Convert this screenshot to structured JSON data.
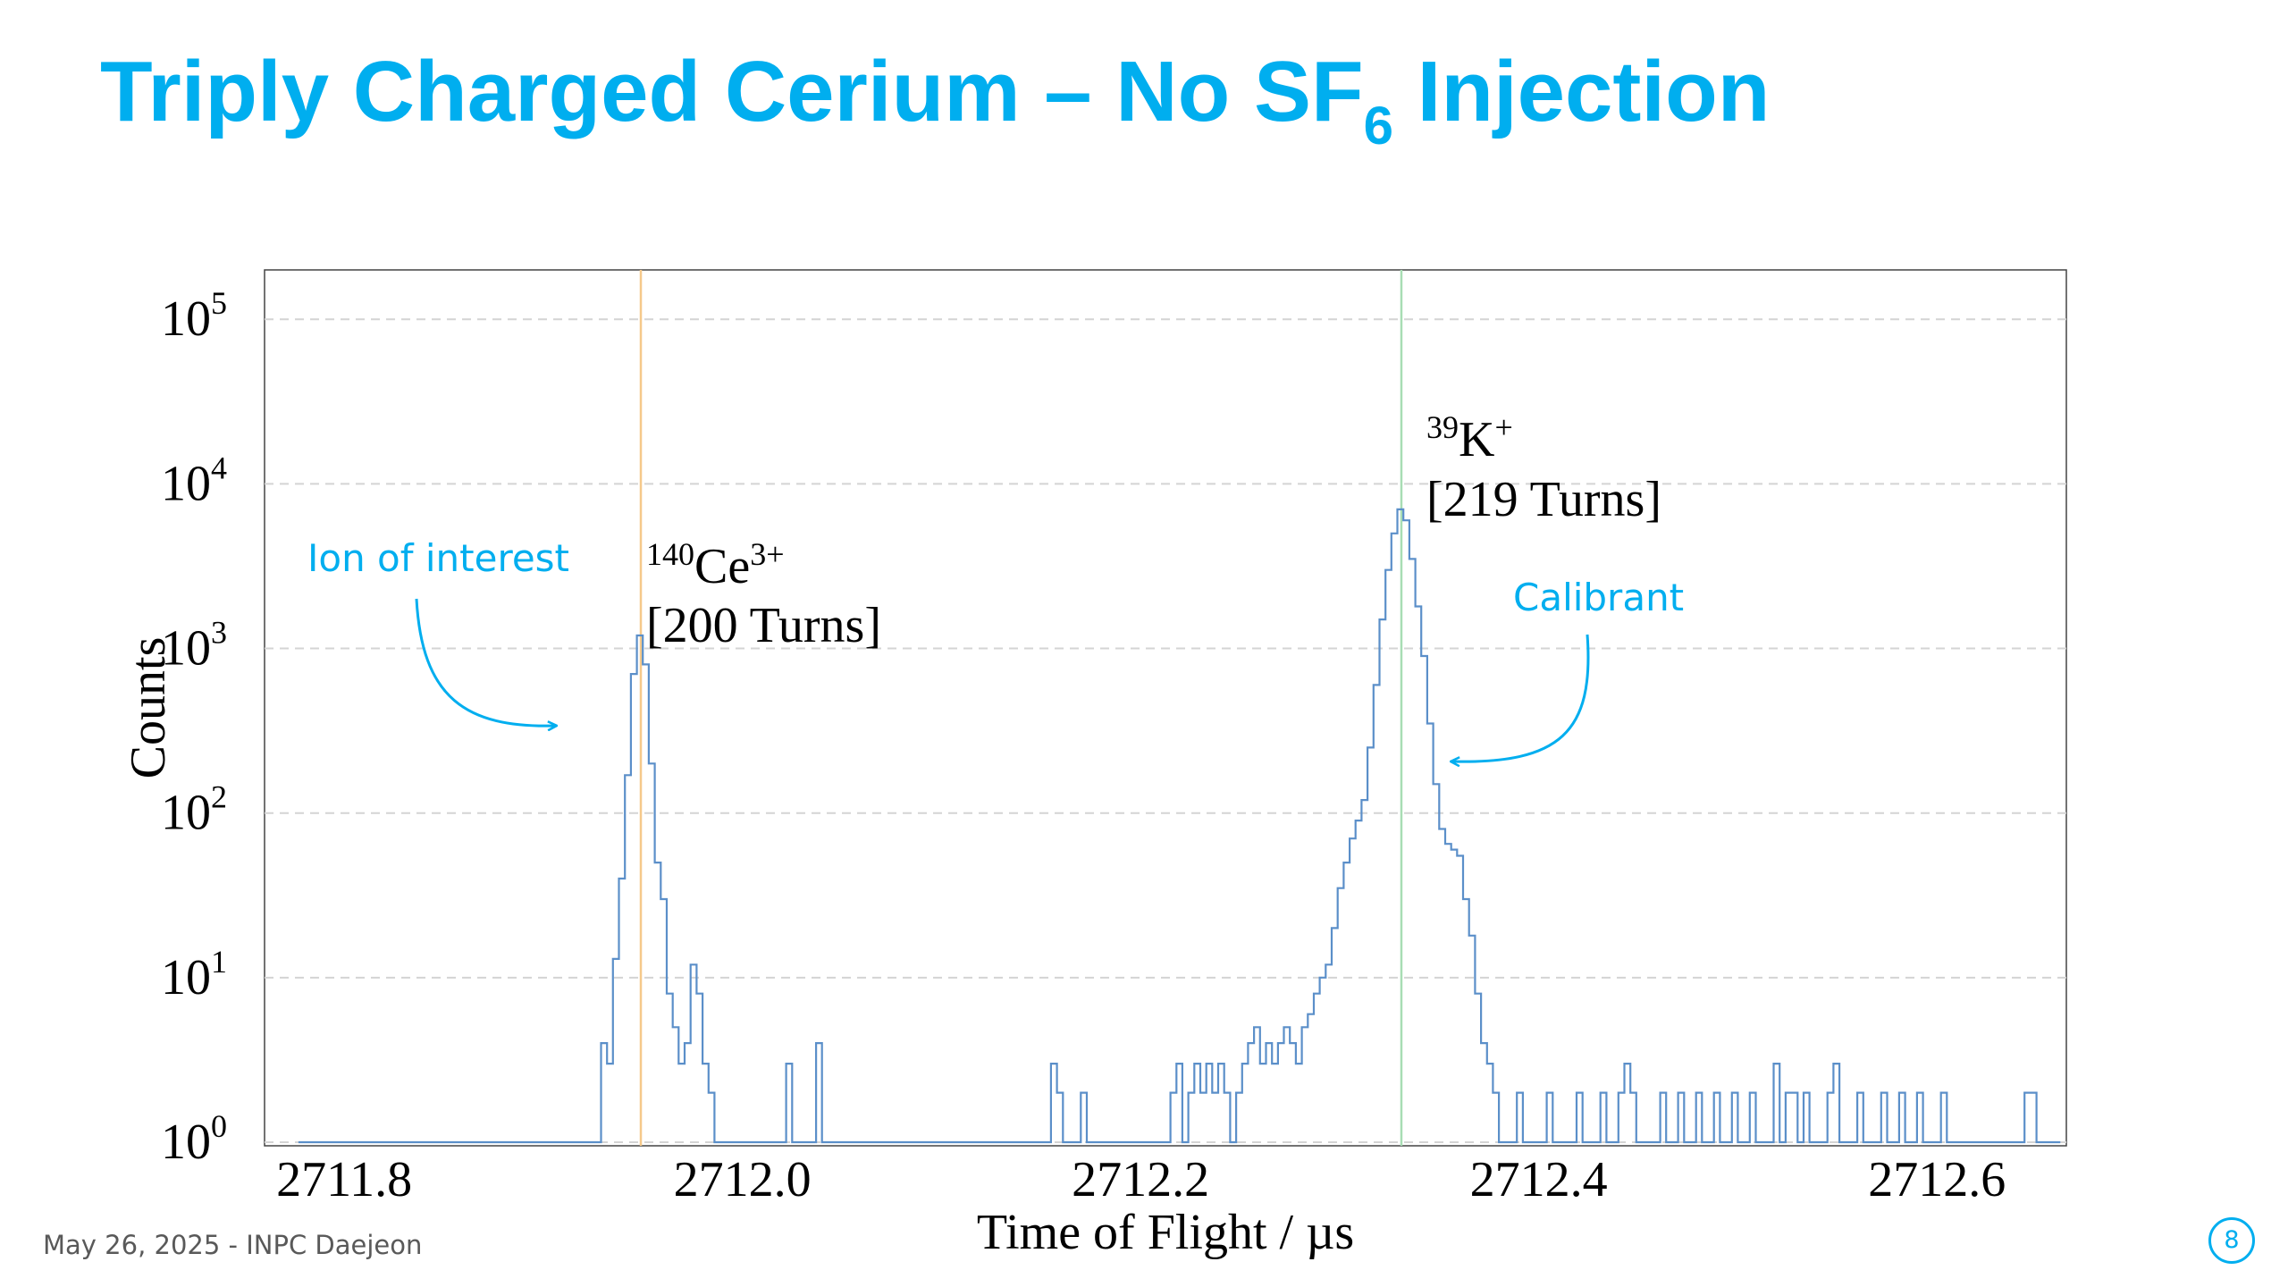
{
  "slide": {
    "title_pre": "Triply Charged Cerium – No SF",
    "title_sub": "6",
    "title_post": " Injection",
    "footer": "May 26, 2025 - INPC Daejeon",
    "page_number": "8",
    "accent_color": "#00AEEF"
  },
  "chart_data": {
    "type": "line",
    "subtype": "step-histogram",
    "xlabel": "Time of Flight / µs",
    "ylabel": "Counts",
    "xlim": [
      2711.76,
      2712.665
    ],
    "ylog": true,
    "ylim_decades": [
      0,
      5.3
    ],
    "x_ticks": [
      "2711.8",
      "2712.0",
      "2712.2",
      "2712.4",
      "2712.6"
    ],
    "y_ticks": [
      {
        "base": "10",
        "exp": "5"
      },
      {
        "base": "10",
        "exp": "4"
      },
      {
        "base": "10",
        "exp": "3"
      },
      {
        "base": "10",
        "exp": "2"
      },
      {
        "base": "10",
        "exp": "1"
      },
      {
        "base": "10",
        "exp": "0"
      }
    ],
    "grid": "horizontal-dashed",
    "line_color": "#5B8FC9",
    "bin_width": 0.003,
    "peaks": [
      {
        "label_sup": "140",
        "label_main": "Ce",
        "label_charge": "3+",
        "turns": "[200 Turns]",
        "x": 2711.949,
        "max_counts": 1200,
        "line_color": "#F5C98A"
      },
      {
        "label_sup": "39",
        "label_main": "K",
        "label_charge": "+",
        "turns": "[219 Turns]",
        "x": 2712.331,
        "max_counts": 7000,
        "line_color": "#A8DDB4"
      }
    ],
    "annotations": [
      {
        "text": "Ion of interest",
        "color": "#00AEEF"
      },
      {
        "text": "Calibrant",
        "color": "#00AEEF"
      }
    ],
    "histogram": [
      [
        2711.777,
        1
      ],
      [
        2711.851,
        1
      ],
      [
        2711.879,
        1
      ],
      [
        2711.897,
        1
      ],
      [
        2711.901,
        1
      ],
      [
        2711.907,
        1
      ],
      [
        2711.912,
        1
      ],
      [
        2711.917,
        1
      ],
      [
        2711.929,
        4
      ],
      [
        2711.932,
        3
      ],
      [
        2711.935,
        13
      ],
      [
        2711.938,
        40
      ],
      [
        2711.941,
        170
      ],
      [
        2711.944,
        700
      ],
      [
        2711.947,
        1200
      ],
      [
        2711.95,
        800
      ],
      [
        2711.953,
        200
      ],
      [
        2711.956,
        50
      ],
      [
        2711.959,
        30
      ],
      [
        2711.962,
        8
      ],
      [
        2711.965,
        5
      ],
      [
        2711.968,
        3
      ],
      [
        2711.971,
        4
      ],
      [
        2711.974,
        12
      ],
      [
        2711.977,
        8
      ],
      [
        2711.98,
        3
      ],
      [
        2711.983,
        2
      ],
      [
        2711.986,
        1
      ],
      [
        2711.989,
        1
      ],
      [
        2711.995,
        1
      ],
      [
        2712.008,
        1
      ],
      [
        2712.016,
        1
      ],
      [
        2712.019,
        1
      ],
      [
        2712.022,
        3
      ],
      [
        2712.031,
        1
      ],
      [
        2712.034,
        1
      ],
      [
        2712.037,
        4
      ],
      [
        2712.04,
        1
      ],
      [
        2712.043,
        1
      ],
      [
        2712.077,
        1
      ],
      [
        2712.091,
        1
      ],
      [
        2712.101,
        1
      ],
      [
        2712.127,
        1
      ],
      [
        2712.131,
        1
      ],
      [
        2712.137,
        1
      ],
      [
        2712.143,
        1
      ],
      [
        2712.146,
        1
      ],
      [
        2712.152,
        1
      ],
      [
        2712.155,
        3
      ],
      [
        2712.158,
        2
      ],
      [
        2712.161,
        1
      ],
      [
        2712.17,
        2
      ],
      [
        2712.188,
        1
      ],
      [
        2712.194,
        1
      ],
      [
        2712.2,
        1
      ],
      [
        2712.206,
        1
      ],
      [
        2712.212,
        1
      ],
      [
        2712.215,
        2
      ],
      [
        2712.218,
        3
      ],
      [
        2712.221,
        1
      ],
      [
        2712.224,
        2
      ],
      [
        2712.227,
        3
      ],
      [
        2712.23,
        2
      ],
      [
        2712.233,
        3
      ],
      [
        2712.236,
        2
      ],
      [
        2712.239,
        3
      ],
      [
        2712.242,
        2
      ],
      [
        2712.245,
        1
      ],
      [
        2712.248,
        2
      ],
      [
        2712.251,
        3
      ],
      [
        2712.254,
        4
      ],
      [
        2712.257,
        5
      ],
      [
        2712.26,
        3
      ],
      [
        2712.263,
        4
      ],
      [
        2712.266,
        3
      ],
      [
        2712.269,
        4
      ],
      [
        2712.272,
        5
      ],
      [
        2712.275,
        4
      ],
      [
        2712.278,
        3
      ],
      [
        2712.281,
        5
      ],
      [
        2712.284,
        6
      ],
      [
        2712.287,
        8
      ],
      [
        2712.29,
        10
      ],
      [
        2712.293,
        12
      ],
      [
        2712.296,
        20
      ],
      [
        2712.299,
        35
      ],
      [
        2712.302,
        50
      ],
      [
        2712.305,
        70
      ],
      [
        2712.308,
        90
      ],
      [
        2712.311,
        120
      ],
      [
        2712.314,
        250
      ],
      [
        2712.317,
        600
      ],
      [
        2712.32,
        1500
      ],
      [
        2712.323,
        3000
      ],
      [
        2712.326,
        5000
      ],
      [
        2712.329,
        7000
      ],
      [
        2712.332,
        6000
      ],
      [
        2712.335,
        3500
      ],
      [
        2712.338,
        1800
      ],
      [
        2712.341,
        900
      ],
      [
        2712.344,
        350
      ],
      [
        2712.347,
        150
      ],
      [
        2712.35,
        80
      ],
      [
        2712.353,
        65
      ],
      [
        2712.356,
        60
      ],
      [
        2712.359,
        55
      ],
      [
        2712.362,
        30
      ],
      [
        2712.365,
        18
      ],
      [
        2712.368,
        8
      ],
      [
        2712.371,
        4
      ],
      [
        2712.374,
        3
      ],
      [
        2712.377,
        2
      ],
      [
        2712.38,
        1
      ],
      [
        2712.383,
        1
      ],
      [
        2712.386,
        1
      ],
      [
        2712.389,
        2
      ],
      [
        2712.392,
        1
      ],
      [
        2712.395,
        1
      ],
      [
        2712.398,
        1
      ],
      [
        2712.401,
        1
      ],
      [
        2712.404,
        2
      ],
      [
        2712.407,
        1
      ],
      [
        2712.41,
        1
      ],
      [
        2712.413,
        1
      ],
      [
        2712.416,
        1
      ],
      [
        2712.419,
        2
      ],
      [
        2712.422,
        1
      ],
      [
        2712.425,
        1
      ],
      [
        2712.428,
        1
      ],
      [
        2712.431,
        2
      ],
      [
        2712.434,
        1
      ],
      [
        2712.437,
        1
      ],
      [
        2712.44,
        2
      ],
      [
        2712.443,
        3
      ],
      [
        2712.446,
        2
      ],
      [
        2712.449,
        1
      ],
      [
        2712.452,
        1
      ],
      [
        2712.455,
        1
      ],
      [
        2712.458,
        1
      ],
      [
        2712.461,
        2
      ],
      [
        2712.464,
        1
      ],
      [
        2712.467,
        1
      ],
      [
        2712.47,
        2
      ],
      [
        2712.473,
        1
      ],
      [
        2712.476,
        1
      ],
      [
        2712.479,
        2
      ],
      [
        2712.482,
        1
      ],
      [
        2712.485,
        1
      ],
      [
        2712.488,
        2
      ],
      [
        2712.491,
        1
      ],
      [
        2712.494,
        1
      ],
      [
        2712.497,
        2
      ],
      [
        2712.5,
        1
      ],
      [
        2712.503,
        1
      ],
      [
        2712.506,
        2
      ],
      [
        2712.509,
        1
      ],
      [
        2712.512,
        1
      ],
      [
        2712.515,
        1
      ],
      [
        2712.518,
        3
      ],
      [
        2712.521,
        1
      ],
      [
        2712.524,
        2
      ],
      [
        2712.527,
        2
      ],
      [
        2712.53,
        1
      ],
      [
        2712.533,
        2
      ],
      [
        2712.536,
        1
      ],
      [
        2712.539,
        1
      ],
      [
        2712.542,
        1
      ],
      [
        2712.545,
        2
      ],
      [
        2712.548,
        3
      ],
      [
        2712.551,
        1
      ],
      [
        2712.554,
        1
      ],
      [
        2712.557,
        1
      ],
      [
        2712.56,
        2
      ],
      [
        2712.563,
        1
      ],
      [
        2712.566,
        1
      ],
      [
        2712.569,
        1
      ],
      [
        2712.572,
        2
      ],
      [
        2712.575,
        1
      ],
      [
        2712.578,
        1
      ],
      [
        2712.581,
        2
      ],
      [
        2712.584,
        1
      ],
      [
        2712.587,
        1
      ],
      [
        2712.59,
        2
      ],
      [
        2712.593,
        1
      ],
      [
        2712.596,
        1
      ],
      [
        2712.599,
        1
      ],
      [
        2712.602,
        2
      ],
      [
        2712.605,
        1
      ],
      [
        2712.608,
        1
      ],
      [
        2712.611,
        1
      ],
      [
        2712.614,
        1
      ],
      [
        2712.617,
        1
      ],
      [
        2712.62,
        1
      ],
      [
        2712.623,
        1
      ],
      [
        2712.626,
        1
      ],
      [
        2712.629,
        1
      ],
      [
        2712.632,
        1
      ],
      [
        2712.635,
        1
      ],
      [
        2712.638,
        1
      ],
      [
        2712.641,
        1
      ],
      [
        2712.644,
        2
      ],
      [
        2712.647,
        2
      ],
      [
        2712.65,
        1
      ],
      [
        2712.653,
        1
      ],
      [
        2712.656,
        1
      ],
      [
        2712.659,
        1
      ]
    ]
  }
}
